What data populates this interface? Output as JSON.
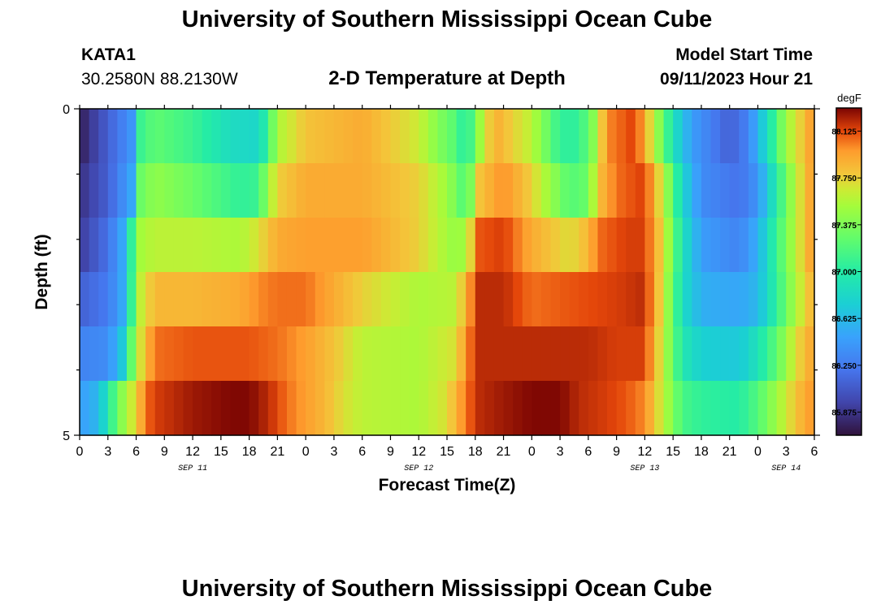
{
  "header": {
    "title": "University of Southern Mississippi Ocean Cube",
    "station": "KATA1",
    "coordinates": "30.2580N  88.2130W",
    "subtitle": "2-D Temperature at Depth",
    "model_start_label": "Model Start Time",
    "model_start_value": "09/11/2023 Hour 21"
  },
  "footer": {
    "title": "University of Southern Mississippi Ocean Cube"
  },
  "chart_data": {
    "type": "heatmap",
    "title": "2-D Temperature at Depth",
    "xlabel": "Forecast Time(Z)",
    "ylabel": "Depth (ft)",
    "colorbar_unit": "degF",
    "colorbar_ticks": [
      "88.125",
      "87.750",
      "87.375",
      "87.000",
      "86.625",
      "86.250",
      "85.875"
    ],
    "colorbar_range": [
      85.69,
      88.31
    ],
    "x_range_hours": [
      0,
      78
    ],
    "x_tick_labels": [
      "0",
      "3",
      "6",
      "9",
      "12",
      "15",
      "18",
      "21",
      "0",
      "3",
      "6",
      "9",
      "12",
      "15",
      "18",
      "21",
      "0",
      "3",
      "6",
      "9",
      "12",
      "15",
      "18",
      "21",
      "0",
      "3",
      "6"
    ],
    "day_labels": [
      {
        "label": "SEP 11",
        "hour": 12
      },
      {
        "label": "SEP 12",
        "hour": 36
      },
      {
        "label": "SEP 13",
        "hour": 60
      },
      {
        "label": "SEP 14",
        "hour": 75
      }
    ],
    "y_range": [
      0,
      5
    ],
    "y_tick_labels": [
      {
        "label": "0",
        "value": 0
      },
      {
        "label": "5",
        "value": 5
      }
    ],
    "y_minor_ticks": [
      1,
      2,
      3,
      4
    ],
    "depth_rows": [
      {
        "depth": "0-1 ft",
        "keypoints": [
          [
            0,
            85.75
          ],
          [
            3,
            86.1
          ],
          [
            5.5,
            86.4
          ],
          [
            6.5,
            87.1
          ],
          [
            8,
            87.25
          ],
          [
            12,
            87.1
          ],
          [
            16,
            86.85
          ],
          [
            19,
            86.8
          ],
          [
            20,
            87.1
          ],
          [
            21,
            87.55
          ],
          [
            24,
            87.8
          ],
          [
            30,
            87.9
          ],
          [
            36,
            87.65
          ],
          [
            38,
            87.4
          ],
          [
            40,
            87.2
          ],
          [
            41,
            86.95
          ],
          [
            42.5,
            87.5
          ],
          [
            44,
            87.9
          ],
          [
            48,
            87.6
          ],
          [
            51,
            87.05
          ],
          [
            53,
            87.05
          ],
          [
            54.5,
            87.4
          ],
          [
            56,
            88.0
          ],
          [
            59,
            88.15
          ],
          [
            61,
            87.6
          ],
          [
            63,
            86.9
          ],
          [
            65,
            86.45
          ],
          [
            69,
            86.1
          ],
          [
            71,
            86.3
          ],
          [
            73,
            86.85
          ],
          [
            75,
            87.5
          ],
          [
            78,
            88.0
          ]
        ]
      },
      {
        "depth": "1-2 ft",
        "keypoints": [
          [
            0,
            85.85
          ],
          [
            3,
            86.1
          ],
          [
            5.5,
            86.5
          ],
          [
            6.5,
            87.3
          ],
          [
            8,
            87.45
          ],
          [
            12,
            87.3
          ],
          [
            17,
            87.05
          ],
          [
            19,
            87.1
          ],
          [
            20,
            87.5
          ],
          [
            21,
            87.75
          ],
          [
            24,
            87.9
          ],
          [
            30,
            87.9
          ],
          [
            36,
            87.75
          ],
          [
            39,
            87.5
          ],
          [
            41,
            87.15
          ],
          [
            42.5,
            87.8
          ],
          [
            45,
            88.0
          ],
          [
            48,
            87.75
          ],
          [
            52,
            87.2
          ],
          [
            54,
            87.3
          ],
          [
            55,
            87.8
          ],
          [
            57,
            88.05
          ],
          [
            60,
            88.15
          ],
          [
            62,
            87.6
          ],
          [
            64,
            86.8
          ],
          [
            66,
            86.35
          ],
          [
            70,
            86.2
          ],
          [
            72,
            86.4
          ],
          [
            74,
            87.0
          ],
          [
            76,
            87.6
          ],
          [
            78,
            88.0
          ]
        ]
      },
      {
        "depth": "2-3 ft",
        "keypoints": [
          [
            0,
            85.9
          ],
          [
            3,
            86.2
          ],
          [
            5,
            86.6
          ],
          [
            6,
            87.5
          ],
          [
            8,
            87.6
          ],
          [
            12,
            87.6
          ],
          [
            17,
            87.55
          ],
          [
            19,
            87.7
          ],
          [
            21,
            87.9
          ],
          [
            24,
            87.95
          ],
          [
            30,
            87.95
          ],
          [
            36,
            87.75
          ],
          [
            40,
            87.45
          ],
          [
            41,
            87.55
          ],
          [
            42.5,
            88.1
          ],
          [
            45,
            88.15
          ],
          [
            48,
            87.9
          ],
          [
            52,
            87.7
          ],
          [
            54,
            87.85
          ],
          [
            55,
            88.05
          ],
          [
            58,
            88.15
          ],
          [
            60,
            88.15
          ],
          [
            62,
            87.7
          ],
          [
            64,
            86.9
          ],
          [
            66,
            86.45
          ],
          [
            70,
            86.3
          ],
          [
            72,
            86.55
          ],
          [
            74,
            87.1
          ],
          [
            76,
            87.6
          ],
          [
            78,
            88.0
          ]
        ]
      },
      {
        "depth": "3-4 ft",
        "keypoints": [
          [
            0,
            86.1
          ],
          [
            3,
            86.25
          ],
          [
            5,
            86.6
          ],
          [
            6,
            87.55
          ],
          [
            8,
            87.85
          ],
          [
            12,
            87.85
          ],
          [
            17,
            87.9
          ],
          [
            19,
            88.0
          ],
          [
            21,
            88.05
          ],
          [
            24,
            88.05
          ],
          [
            30,
            87.75
          ],
          [
            36,
            87.55
          ],
          [
            40,
            87.6
          ],
          [
            41,
            87.9
          ],
          [
            42.5,
            88.2
          ],
          [
            45,
            88.2
          ],
          [
            48,
            88.05
          ],
          [
            52,
            88.1
          ],
          [
            57,
            88.15
          ],
          [
            60,
            88.2
          ],
          [
            62,
            87.65
          ],
          [
            64,
            86.85
          ],
          [
            66,
            86.55
          ],
          [
            70,
            86.5
          ],
          [
            72,
            86.6
          ],
          [
            74,
            87.05
          ],
          [
            76,
            87.55
          ],
          [
            78,
            87.9
          ]
        ]
      },
      {
        "depth": "4-5 ft",
        "keypoints": [
          [
            0,
            86.3
          ],
          [
            3,
            86.35
          ],
          [
            4.5,
            86.7
          ],
          [
            6,
            87.55
          ],
          [
            7,
            87.85
          ],
          [
            8,
            88.05
          ],
          [
            12,
            88.1
          ],
          [
            18,
            88.1
          ],
          [
            21,
            88.05
          ],
          [
            24,
            87.95
          ],
          [
            27,
            87.8
          ],
          [
            30,
            87.6
          ],
          [
            36,
            87.55
          ],
          [
            40,
            87.7
          ],
          [
            41,
            88.0
          ],
          [
            42.5,
            88.2
          ],
          [
            45,
            88.2
          ],
          [
            54,
            88.2
          ],
          [
            57,
            88.15
          ],
          [
            60,
            88.15
          ],
          [
            62,
            87.6
          ],
          [
            64,
            86.95
          ],
          [
            66,
            86.75
          ],
          [
            70,
            86.7
          ],
          [
            72,
            86.9
          ],
          [
            74,
            87.25
          ],
          [
            76,
            87.7
          ],
          [
            78,
            87.95
          ]
        ]
      },
      {
        "depth": "5 ft",
        "keypoints": [
          [
            0,
            86.45
          ],
          [
            2,
            86.6
          ],
          [
            3,
            86.95
          ],
          [
            4,
            87.3
          ],
          [
            5,
            87.55
          ],
          [
            6,
            87.75
          ],
          [
            7,
            88.05
          ],
          [
            8,
            88.15
          ],
          [
            12,
            88.25
          ],
          [
            16,
            88.3
          ],
          [
            18,
            88.3
          ],
          [
            20,
            88.2
          ],
          [
            22,
            88.05
          ],
          [
            24,
            87.95
          ],
          [
            26,
            87.85
          ],
          [
            28,
            87.7
          ],
          [
            30,
            87.6
          ],
          [
            36,
            87.55
          ],
          [
            39,
            87.7
          ],
          [
            41,
            88.05
          ],
          [
            42.5,
            88.2
          ],
          [
            45,
            88.25
          ],
          [
            48,
            88.3
          ],
          [
            51,
            88.3
          ],
          [
            53,
            88.2
          ],
          [
            56,
            88.15
          ],
          [
            58,
            88.1
          ],
          [
            60,
            88.0
          ],
          [
            62,
            87.6
          ],
          [
            64,
            87.15
          ],
          [
            66,
            87.05
          ],
          [
            70,
            87.0
          ],
          [
            72,
            87.2
          ],
          [
            74,
            87.5
          ],
          [
            76,
            87.8
          ],
          [
            78,
            88.0
          ]
        ]
      }
    ]
  }
}
